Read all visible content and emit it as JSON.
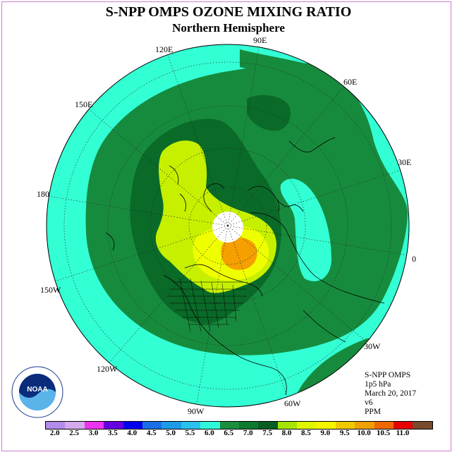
{
  "title": "S-NPP OMPS OZONE MIXING RATIO",
  "subtitle": "Northern Hemisphere",
  "longitude_labels": {
    "e90": "90E",
    "e60": "60E",
    "e120": "120E",
    "e150": "150E",
    "e30": "30E",
    "d180": "180",
    "d0": "0",
    "w150": "150W",
    "w30": "30W",
    "w120": "120W",
    "w60": "60W",
    "w90": "90W"
  },
  "info": {
    "instrument": "S-NPP OMPS",
    "level": "1p5 hPa",
    "date": "March 20, 2017",
    "version": "v6",
    "units": "PPM"
  },
  "logo_text": "NOAA",
  "colorbar": {
    "ticks": [
      "2.0",
      "2.5",
      "3.0",
      "3.5",
      "4.0",
      "4.5",
      "5.0",
      "5.5",
      "6.0",
      "6.5",
      "7.0",
      "7.5",
      "8.0",
      "8.5",
      "9.0",
      "9.5",
      "10.0",
      "10.5",
      "11.0"
    ],
    "colors": [
      "#b38bea",
      "#d6a8ee",
      "#ee33ee",
      "#6600e0",
      "#0000ee",
      "#1a6ee8",
      "#1e9be8",
      "#29c1ee",
      "#2ef7da",
      "#1b8f3e",
      "#0d7a2e",
      "#075e20",
      "#a6e400",
      "#e0f500",
      "#f5f500",
      "#f0c800",
      "#f0a000",
      "#f06800",
      "#e80000",
      "#7a4a2c"
    ]
  },
  "map_colors": {
    "cyan": "#33ffd5",
    "green_6_5": "#178b3d",
    "green_7_0": "#0a6a28",
    "yellow_green": "#c6f000",
    "light_yellow": "#f0ff00",
    "orange": "#f5a000",
    "pole_hole": "#ffffff"
  }
}
